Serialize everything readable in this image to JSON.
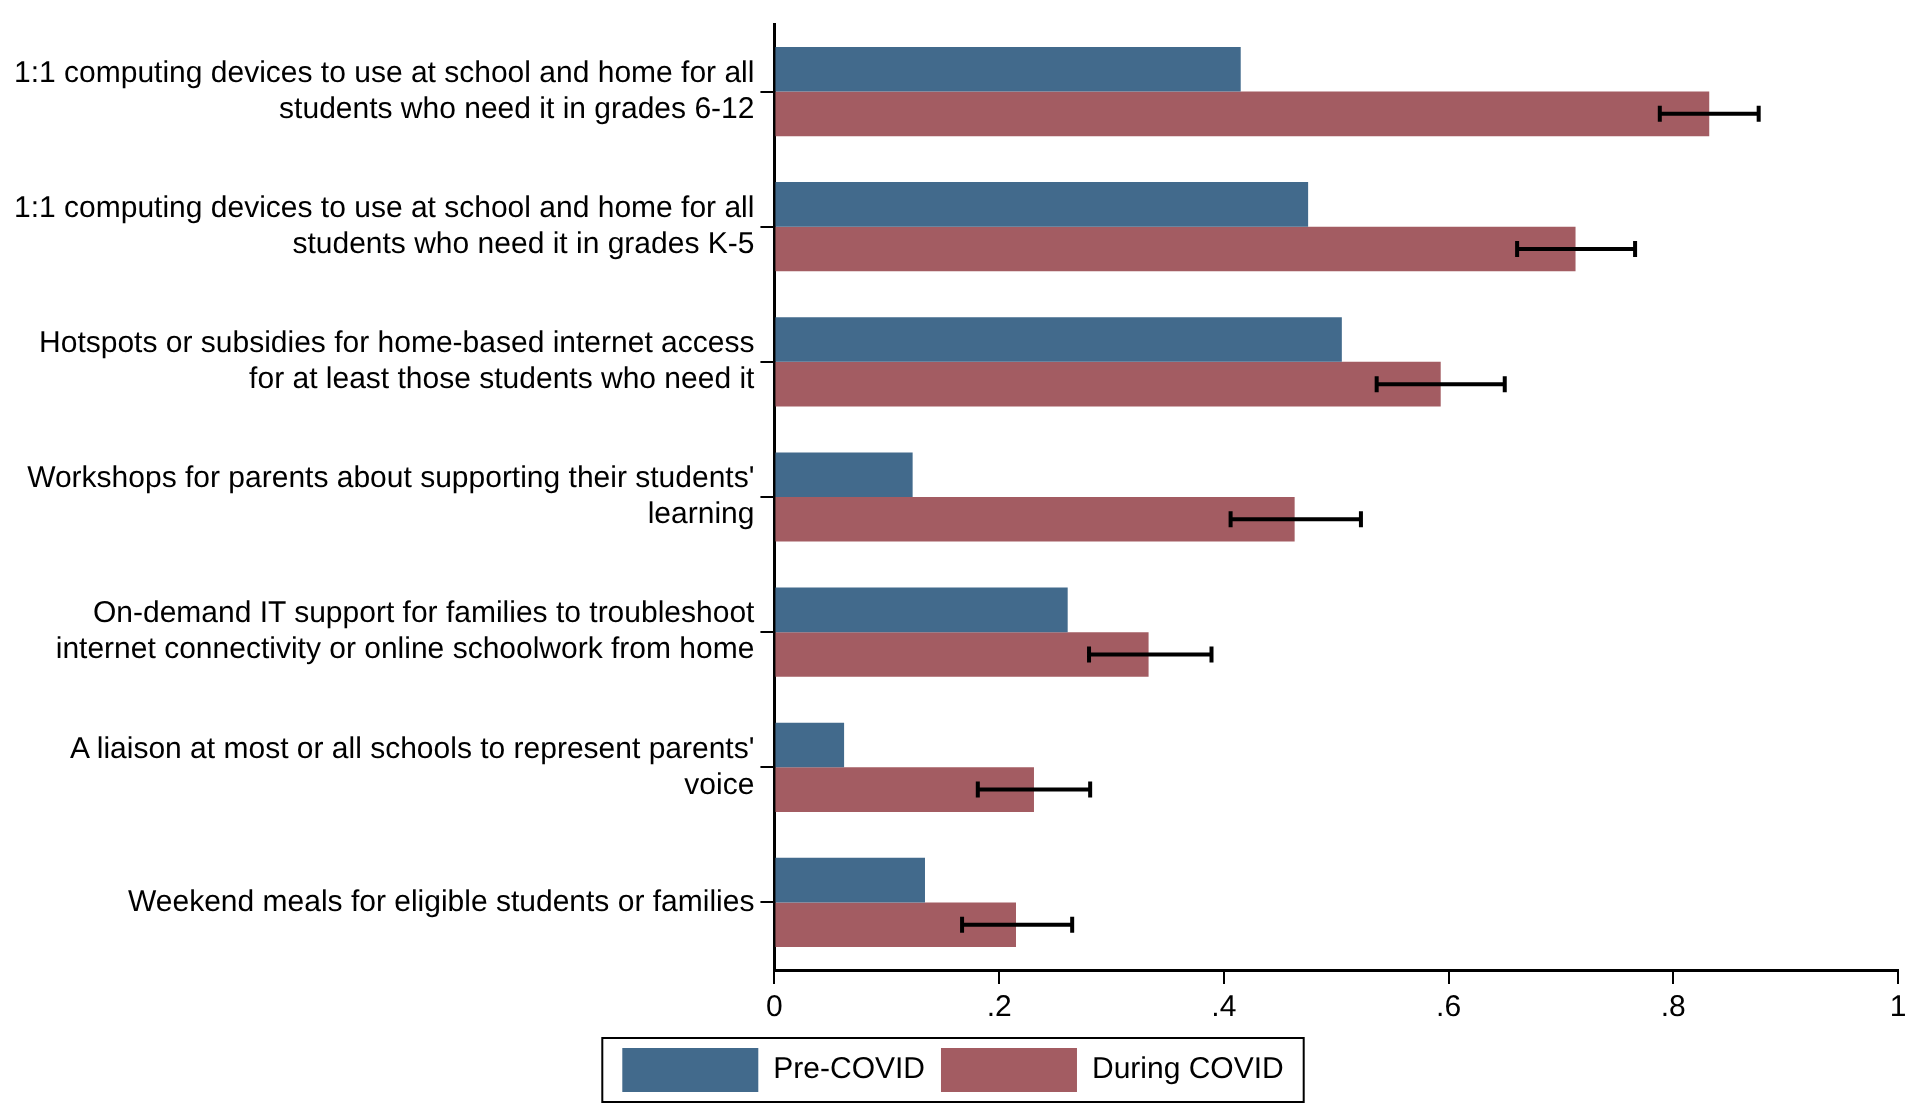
{
  "chart_data": {
    "type": "bar",
    "orientation": "horizontal",
    "categories": [
      "1:1 computing devices to use at school and home for all\nstudents who need it in grades 6-12",
      "1:1 computing devices to use at school and home for all\nstudents who need it in grades K-5",
      "Hotspots or subsidies for home-based internet access\nfor at least those students who need it",
      "Workshops for parents about supporting their students'\nlearning",
      "On-demand IT support for families to troubleshoot\ninternet connectivity or online schoolwork from home",
      "A liaison at most or all schools to represent parents'\nvoice",
      "Weekend meals for eligible students or families"
    ],
    "series": [
      {
        "name": "Pre-COVID",
        "color": "#426a8c",
        "values": [
          0.415,
          0.475,
          0.505,
          0.123,
          0.261,
          0.062,
          0.134
        ]
      },
      {
        "name": "During COVID",
        "color": "#a35c62",
        "values": [
          0.832,
          0.713,
          0.593,
          0.463,
          0.333,
          0.231,
          0.215
        ],
        "errors": [
          [
            0.788,
            0.876
          ],
          [
            0.661,
            0.766
          ],
          [
            0.536,
            0.65
          ],
          [
            0.406,
            0.522
          ],
          [
            0.28,
            0.389
          ],
          [
            0.181,
            0.281
          ],
          [
            0.167,
            0.265
          ]
        ]
      }
    ],
    "xlim": [
      0,
      1
    ],
    "xticks": [
      0,
      {
        "value": 0.2,
        "label": ".2"
      },
      {
        "value": 0.4,
        "label": ".4"
      },
      {
        "value": 0.6,
        "label": ".6"
      },
      {
        "value": 0.8,
        "label": ".8"
      },
      1
    ],
    "grid": false,
    "legend": "bottom"
  }
}
